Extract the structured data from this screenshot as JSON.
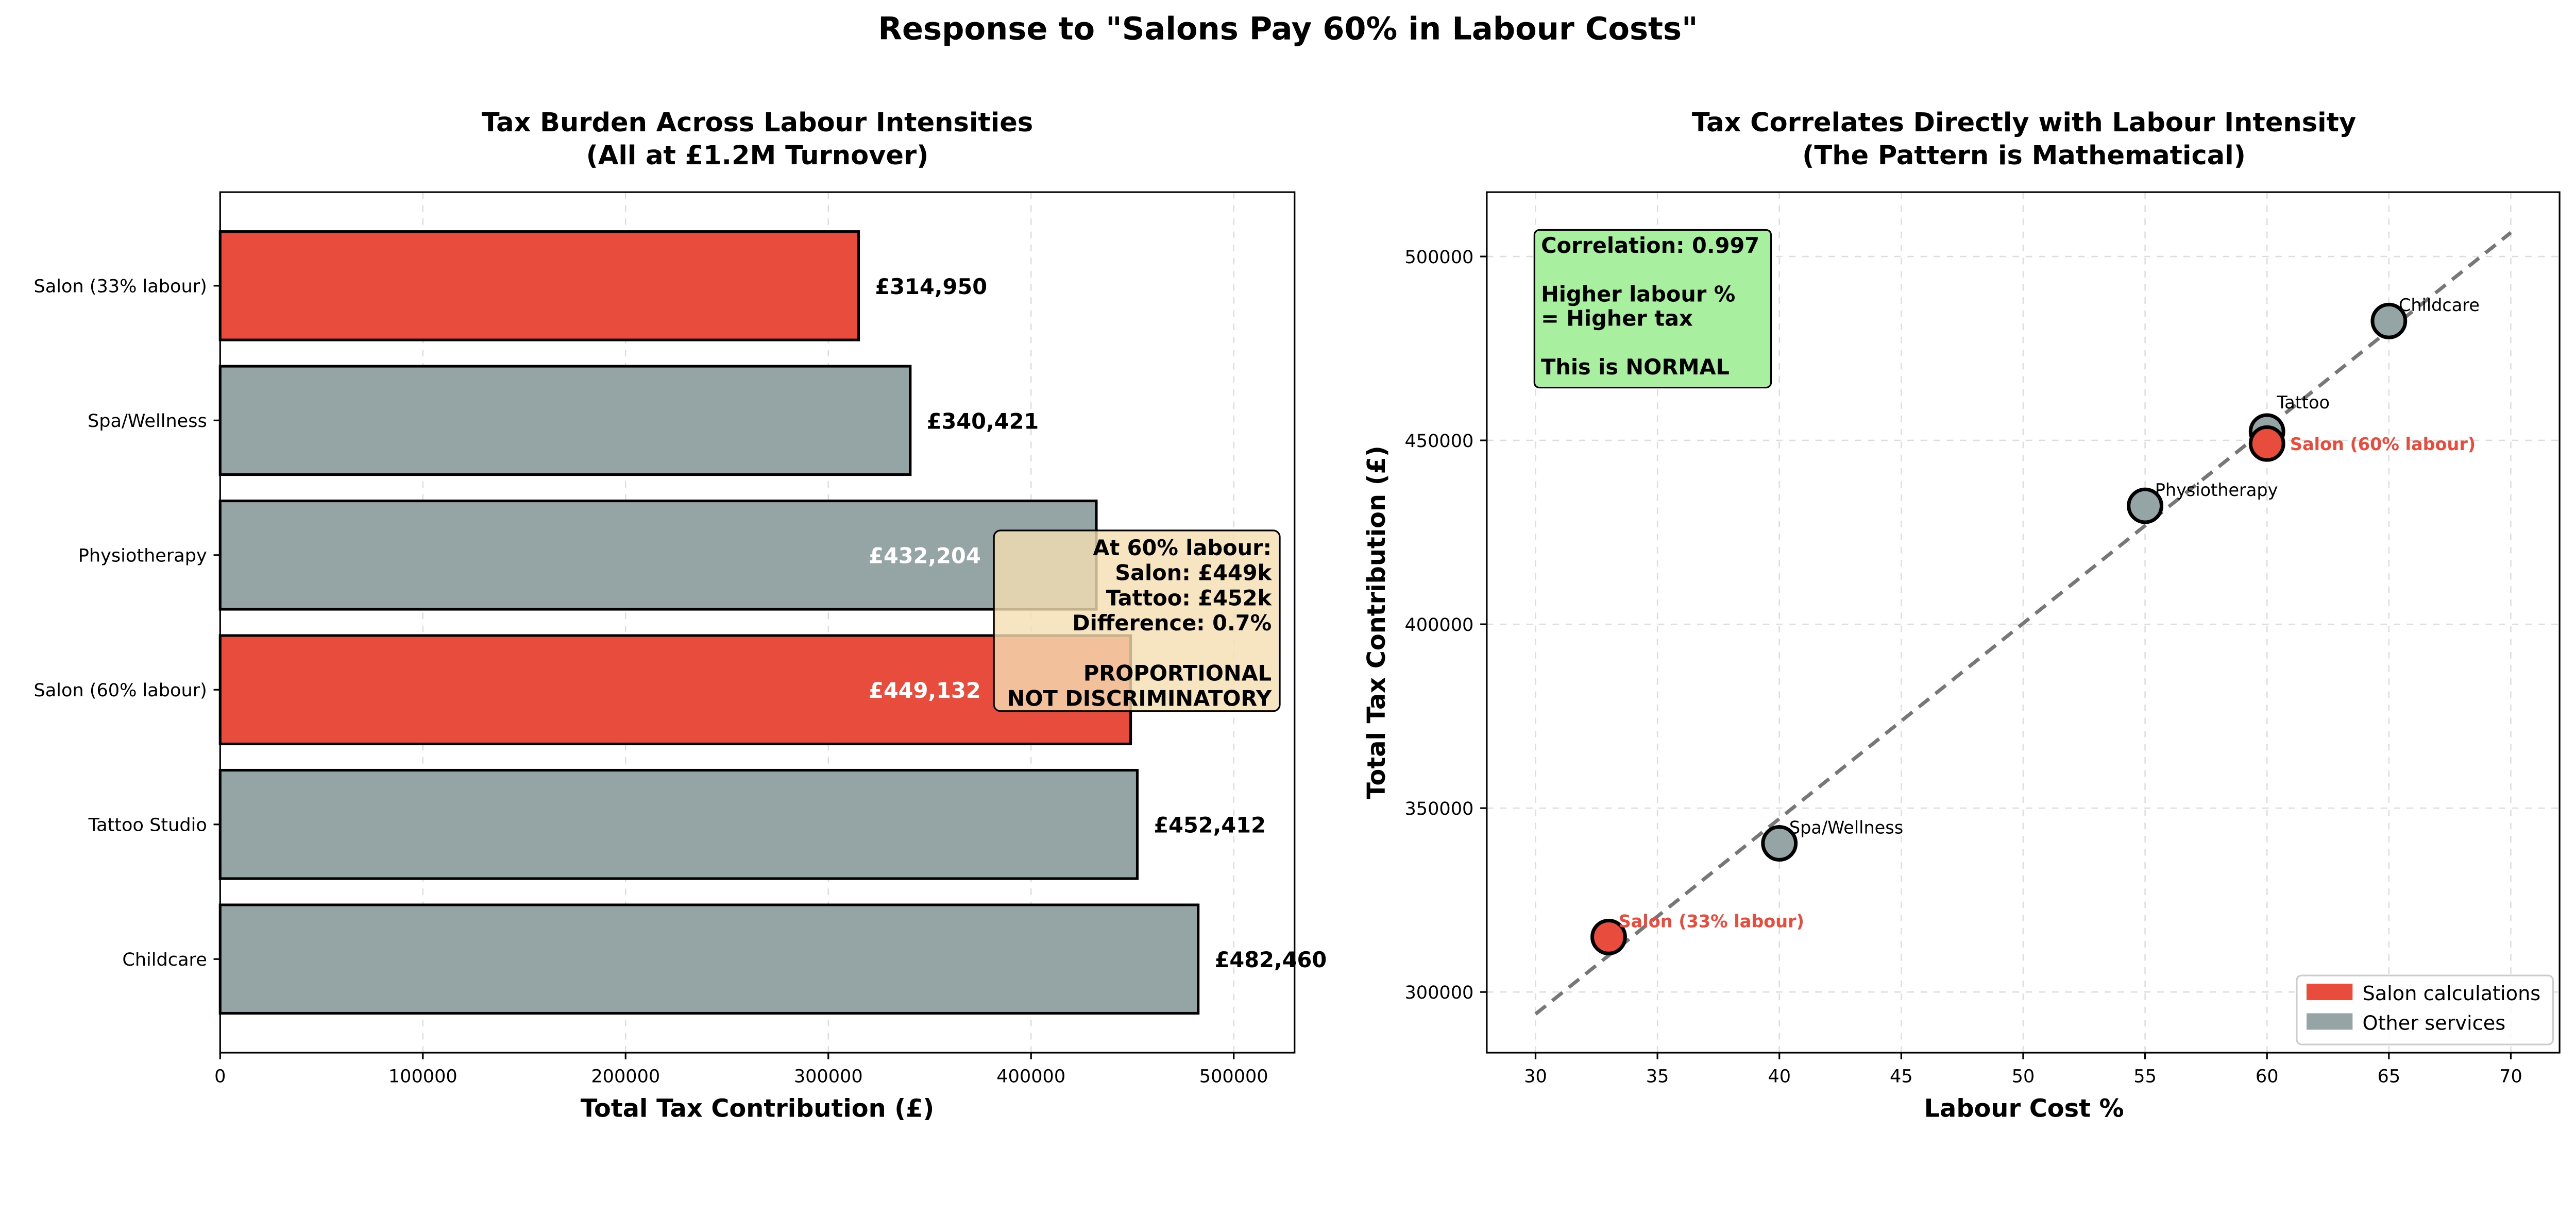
{
  "suptitle": "Response to \"Salons Pay 60% in Labour Costs\"",
  "colors": {
    "salon": "#e74c3c",
    "other": "#95a5a6",
    "note_box": "#f5deb3",
    "green_box": "#a8f0a0"
  },
  "chart_data": [
    {
      "type": "bar",
      "orientation": "horizontal",
      "title_line1": "Tax Burden Across Labour Intensities",
      "title_line2": "(All at £1.2M Turnover)",
      "xlabel": "Total Tax Contribution (£)",
      "ylabel": "",
      "xlim": [
        0,
        530000
      ],
      "xticks": [
        "0",
        "100000",
        "200000",
        "300000",
        "400000",
        "500000"
      ],
      "grid": true,
      "categories": [
        "Salon (33% labour)",
        "Spa/Wellness",
        "Physiotherapy",
        "Salon (60% labour)",
        "Tattoo Studio",
        "Childcare"
      ],
      "values": [
        314950,
        340421,
        432204,
        449132,
        452412,
        482460
      ],
      "data_labels": [
        "£314,950",
        "£340,421",
        "£432,204",
        "£449,132",
        "£452,412",
        "£482,460"
      ],
      "is_salon": [
        true,
        false,
        false,
        true,
        false,
        false
      ],
      "annotation": [
        "At 60% labour:",
        "Salon: £449k",
        "Tattoo: £452k",
        "Difference: 0.7%",
        "",
        "PROPORTIONAL",
        "NOT DISCRIMINATORY"
      ]
    },
    {
      "type": "scatter",
      "title_line1": "Tax Correlates Directly with Labour Intensity",
      "title_line2": "(The Pattern is Mathematical)",
      "xlabel": "Labour Cost %",
      "ylabel": "Total Tax Contribution (£)",
      "xlim": [
        28,
        72
      ],
      "ylim": [
        283500,
        517500
      ],
      "xticks": [
        30,
        35,
        40,
        45,
        50,
        55,
        60,
        65,
        70
      ],
      "yticks": [
        300000,
        350000,
        400000,
        450000,
        500000
      ],
      "grid": true,
      "points": [
        {
          "label": "Salon (33% labour)",
          "x": 33,
          "y": 314950,
          "salon": true
        },
        {
          "label": "Spa/Wellness",
          "x": 40,
          "y": 340421,
          "salon": false
        },
        {
          "label": "Physiotherapy",
          "x": 55,
          "y": 432204,
          "salon": false
        },
        {
          "label": "Tattoo",
          "x": 60,
          "y": 452412,
          "salon": false
        },
        {
          "label": "Salon (60% labour)",
          "x": 60,
          "y": 449132,
          "salon": true
        },
        {
          "label": "Childcare",
          "x": 65,
          "y": 482460,
          "salon": false
        }
      ],
      "trend_line": {
        "x": [
          30,
          70
        ],
        "y": [
          294000,
          506500
        ]
      },
      "annotation": [
        "Correlation: 0.997",
        "",
        "Higher labour %",
        "= Higher tax",
        "",
        "This is NORMAL"
      ],
      "legend": {
        "position": "lower right",
        "entries": [
          "Salon calculations",
          "Other services"
        ]
      }
    }
  ]
}
